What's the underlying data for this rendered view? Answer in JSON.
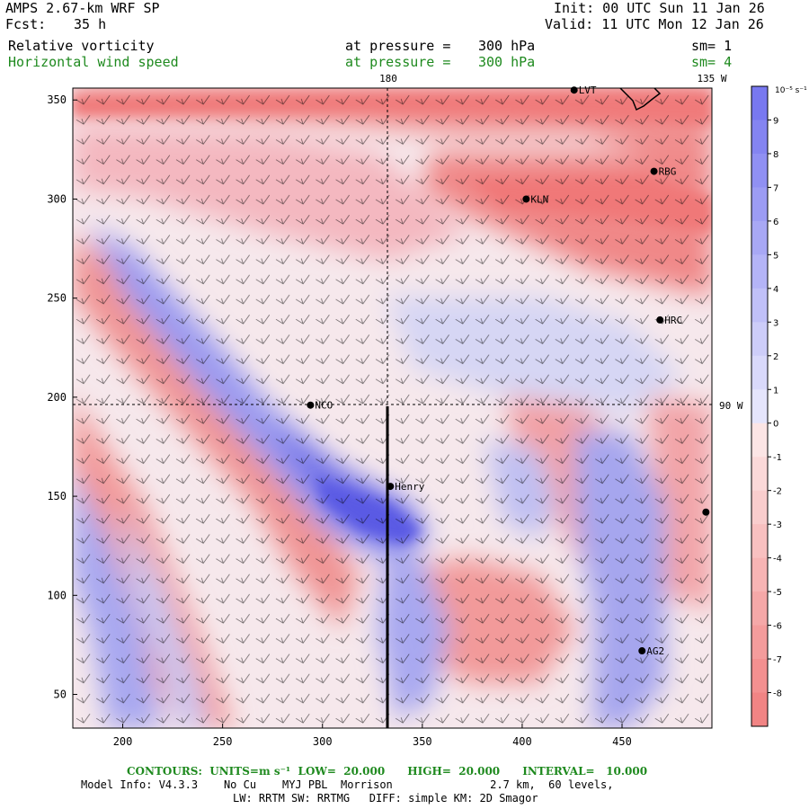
{
  "header": {
    "model": "AMPS 2.67-km WRF SP",
    "fcst_label": "Fcst:",
    "fcst_value": "35 h",
    "init": "Init: 00 UTC Sun 11 Jan 26",
    "valid": "Valid: 11 UTC Mon 12 Jan 26"
  },
  "fields": [
    {
      "name": "Relative vorticity",
      "level_label": "at pressure =",
      "level": "300 hPa",
      "sm": "sm= 1",
      "color": "#000000"
    },
    {
      "name": "Horizontal wind speed",
      "level_label": "at pressure =",
      "level": "300 hPa",
      "sm": "sm= 4",
      "color": "#1f8a1f"
    }
  ],
  "map": {
    "x_ticks": [
      "200",
      "250",
      "300",
      "350",
      "400",
      "450"
    ],
    "y_ticks": [
      "350",
      "300",
      "250",
      "200",
      "150",
      "100",
      "50"
    ],
    "meridian_180": "180",
    "meridian_135w": "135 W",
    "meridian_90w": "90 W",
    "stations": [
      {
        "id": "LVT",
        "x": 426,
        "y": 355
      },
      {
        "id": "RBG",
        "x": 466,
        "y": 314
      },
      {
        "id": "KLN",
        "x": 402,
        "y": 300
      },
      {
        "id": "HRC",
        "x": 469,
        "y": 239
      },
      {
        "id": "NCO",
        "x": 294,
        "y": 196
      },
      {
        "id": "Henry",
        "x": 334,
        "y": 155
      },
      {
        "id": "AG2",
        "x": 460,
        "y": 72
      },
      {
        "id": "",
        "x": 492,
        "y": 142
      }
    ]
  },
  "colorbar": {
    "unit": "10⁻⁵ s⁻¹",
    "levels": [
      "9",
      "8",
      "7",
      "6",
      "5",
      "4",
      "3",
      "2",
      "1",
      "0",
      "-1",
      "-2",
      "-3",
      "-4",
      "-5",
      "-6",
      "-7",
      "-8"
    ],
    "positive_color": "#7878f0",
    "negative_color": "#f07878"
  },
  "footer": {
    "contours": "CONTOURS:  UNITS=m s⁻¹  LOW=  20.000      HIGH=  20.000      INTERVAL=   10.000",
    "model_info": "Model Info: V4.3.3    No Cu    MYJ PBL  Morrison               2.7 km,  60 levels,",
    "physics": "LW: RRTM SW: RRTMG   DIFF: simple KM: 2D Smagor"
  }
}
